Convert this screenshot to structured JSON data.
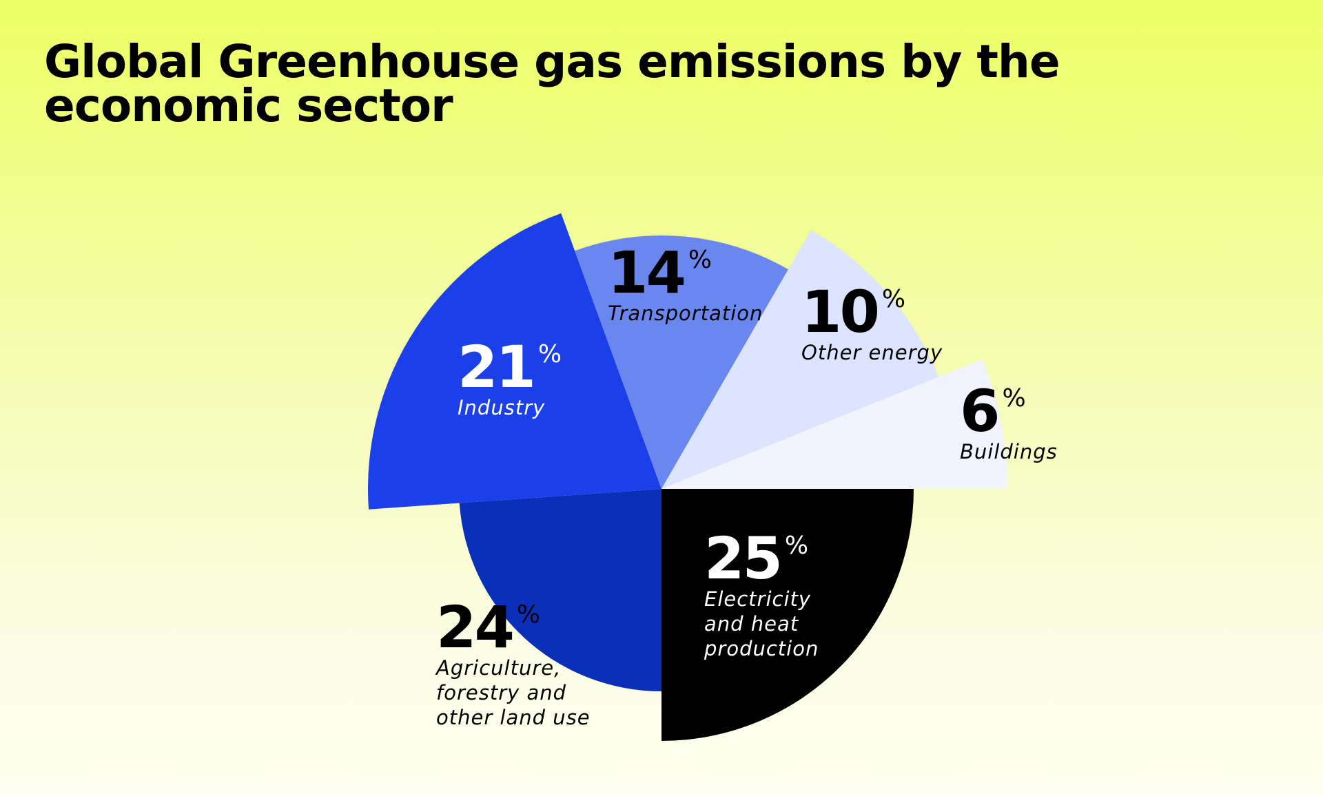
{
  "title": "Global Greenhouse gas emissions by the economic sector",
  "chart_data": {
    "type": "pie",
    "title": "Global Greenhouse gas emissions by the economic sector",
    "unit": "%",
    "slices": [
      {
        "label": "Electricity and heat production",
        "label_lines": [
          "Electricity",
          "and heat",
          "production"
        ],
        "value": 25,
        "color": "#000000",
        "text_color": "#ffffff"
      },
      {
        "label": "Agriculture, forestry and other land use",
        "label_lines": [
          "Agriculture,",
          "forestry and",
          "other land use"
        ],
        "value": 24,
        "color": "#0a2fb8",
        "text_color": "#000000"
      },
      {
        "label": "Industry",
        "label_lines": [
          "Industry"
        ],
        "value": 21,
        "color": "#1b40ea",
        "text_color": "#ffffff"
      },
      {
        "label": "Transportation",
        "label_lines": [
          "Transportation"
        ],
        "value": 14,
        "color": "#6a87f0",
        "text_color": "#000000"
      },
      {
        "label": "Other energy",
        "label_lines": [
          "Other energy"
        ],
        "value": 10,
        "color": "#dde4ff",
        "text_color": "#000000"
      },
      {
        "label": "Buildings",
        "label_lines": [
          "Buildings"
        ],
        "value": 6,
        "color": "#f1f3ff",
        "text_color": "#000000"
      }
    ]
  }
}
